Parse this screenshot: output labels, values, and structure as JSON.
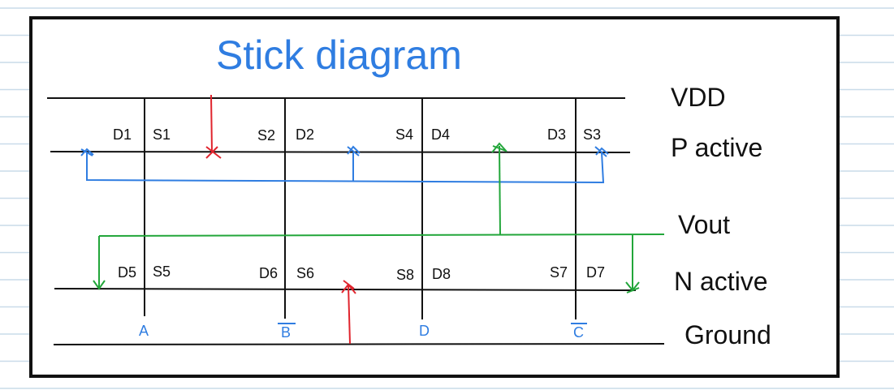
{
  "title": "Stick diagram",
  "colors": {
    "paper_rule": "#c9dbe9",
    "frame": "#111111",
    "rail": "#111111",
    "gate": "#111111",
    "vdd_contact": "#e0242d",
    "gnd_contact": "#e0242d",
    "p_interconnect": "#2f7de1",
    "vout_net": "#22a63a",
    "title": "#2f7de1",
    "input_label": "#2f7de1"
  },
  "rails": {
    "vdd": "VDD",
    "p_active": "P active",
    "vout": "Vout",
    "n_active": "N active",
    "ground": "Ground"
  },
  "p_terminals": [
    "D1",
    "S1",
    "S2",
    "D2",
    "S4",
    "D4",
    "D3",
    "S3"
  ],
  "n_terminals": [
    "D5",
    "S5",
    "D6",
    "S6",
    "S8",
    "D8",
    "S7",
    "D7"
  ],
  "inputs": [
    {
      "label": "A",
      "inverted": false
    },
    {
      "label": "B",
      "inverted": true
    },
    {
      "label": "D",
      "inverted": false
    },
    {
      "label": "C",
      "inverted": true
    }
  ]
}
